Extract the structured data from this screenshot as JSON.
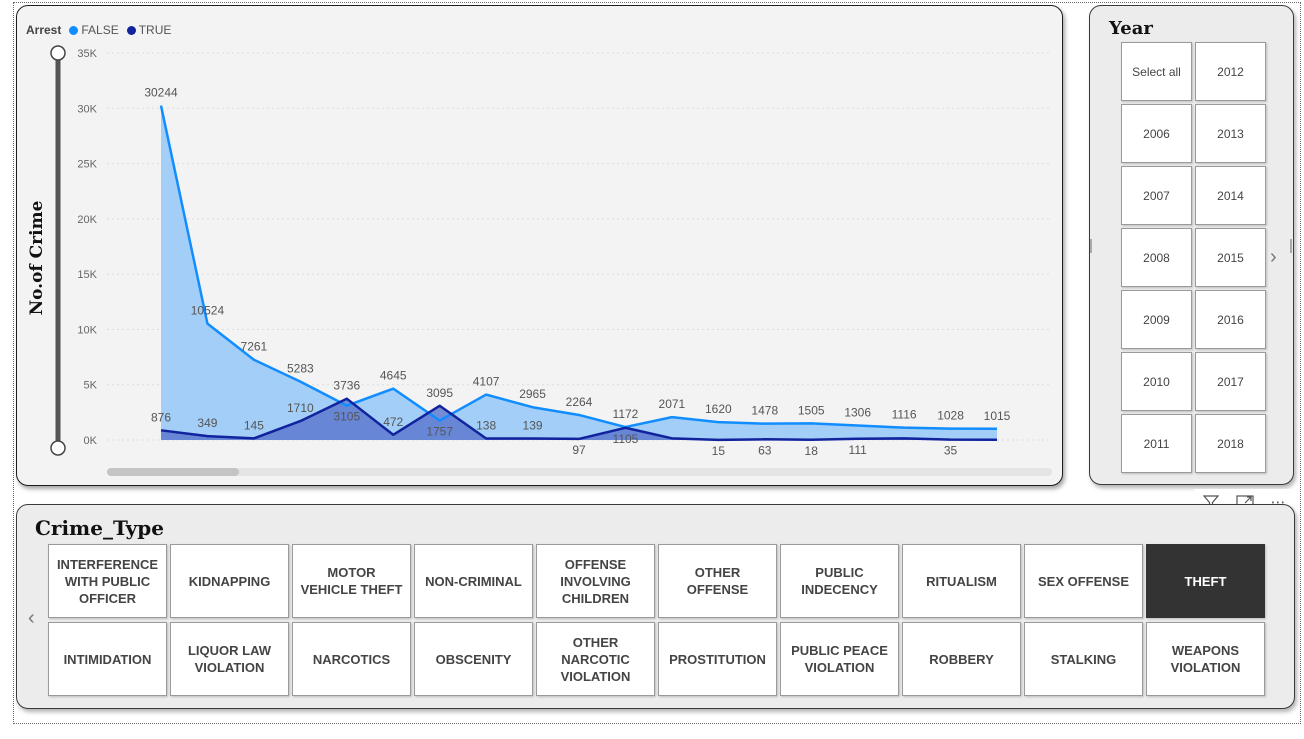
{
  "chart_data": {
    "type": "area",
    "title": "",
    "xlabel": "",
    "ylabel": "No.of Crime",
    "ylim": [
      0,
      35000
    ],
    "yticks": [
      "0K",
      "5K",
      "10K",
      "15K",
      "20K",
      "25K",
      "30K",
      "35K"
    ],
    "grid": true,
    "legend": {
      "title": "Arrest",
      "position": "top-left"
    },
    "series": [
      {
        "name": "FALSE",
        "color": "#118DFF",
        "fill": "#9DCBF7",
        "values": [
          30244,
          10524,
          7261,
          5283,
          3105,
          4645,
          1757,
          4107,
          2965,
          2264,
          1172,
          2071,
          1620,
          1478,
          1505,
          1306,
          1116,
          1028,
          1015
        ],
        "labels": [
          "30244",
          "10524",
          "7261",
          "5283",
          "3105",
          "4645",
          "1757",
          "4107",
          "2965",
          "2264",
          "1172",
          "2071",
          "1620",
          "1478",
          "1505",
          "1306",
          "1116",
          "1028",
          "1015"
        ]
      },
      {
        "name": "TRUE",
        "color": "#12239E",
        "fill": "#5E79D0",
        "values": [
          876,
          349,
          145,
          1710,
          3736,
          472,
          3095,
          138,
          139,
          97,
          1105,
          150,
          15,
          63,
          18,
          111,
          150,
          35,
          20
        ],
        "labels": [
          "876",
          "349",
          "145",
          "1710",
          "3736",
          "472",
          "3095",
          "138",
          "139",
          "97",
          "1105",
          "",
          "15",
          "63",
          "18",
          "111",
          "",
          "35",
          ""
        ]
      }
    ]
  },
  "legend": {
    "title": "Arrest",
    "items": [
      "FALSE",
      "TRUE"
    ]
  },
  "colors": {
    "false_line": "#118DFF",
    "true_line": "#12239E"
  },
  "year_slicer": {
    "title": "Year",
    "items": [
      "Select all",
      "2012",
      "2006",
      "2013",
      "2007",
      "2014",
      "2008",
      "2015",
      "2009",
      "2016",
      "2010",
      "2017",
      "2011",
      "2018"
    ]
  },
  "crime_slicer": {
    "title": "Crime_Type",
    "selected": "THEFT",
    "items": [
      "INTERFERENCE WITH PUBLIC OFFICER",
      "KIDNAPPING",
      "MOTOR VEHICLE THEFT",
      "NON-CRIMINAL",
      "OFFENSE INVOLVING CHILDREN",
      "OTHER OFFENSE",
      "PUBLIC INDECENCY",
      "RITUALISM",
      "SEX OFFENSE",
      "THEFT",
      "INTIMIDATION",
      "LIQUOR LAW VIOLATION",
      "NARCOTICS",
      "OBSCENITY",
      "OTHER NARCOTIC VIOLATION",
      "PROSTITUTION",
      "PUBLIC PEACE VIOLATION",
      "ROBBERY",
      "STALKING",
      "WEAPONS VIOLATION"
    ]
  },
  "icons": {
    "filter": "filter-icon",
    "focus": "focus-mode-icon",
    "more": "more-options-icon",
    "prev": "chevron-left-icon",
    "next": "chevron-right-icon"
  }
}
